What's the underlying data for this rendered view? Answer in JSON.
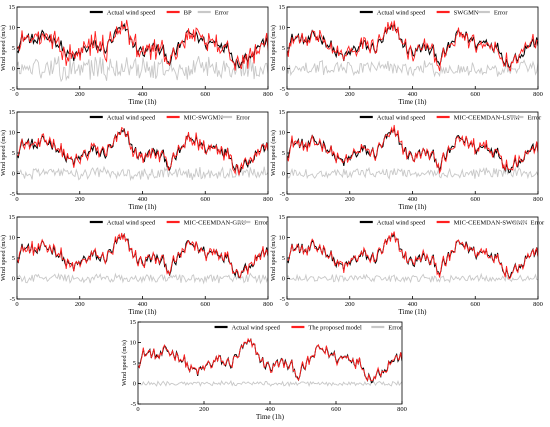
{
  "chart_data": [
    {
      "type": "line",
      "xlabel": "Time (1h)",
      "ylabel": "Wind speed (m/s)",
      "xlim": [
        0,
        800
      ],
      "ylim": [
        -5,
        15
      ],
      "x_ticks": [
        0,
        200,
        400,
        600,
        800
      ],
      "y_ticks": [
        -5,
        0,
        5,
        10,
        15
      ],
      "legend_position": "top-center",
      "series": [
        {
          "name": "Actual wind speed",
          "color": "#000000"
        },
        {
          "name": "BP",
          "color": "#ff2020"
        },
        {
          "name": "Error",
          "color": "#c8c8c8"
        }
      ]
    },
    {
      "type": "line",
      "xlabel": "Time (1h)",
      "ylabel": "Wind speed (m/s)",
      "xlim": [
        0,
        800
      ],
      "ylim": [
        -5,
        15
      ],
      "x_ticks": [
        0,
        200,
        400,
        600,
        800
      ],
      "y_ticks": [
        -5,
        0,
        5,
        10,
        15
      ],
      "legend_position": "top-center",
      "series": [
        {
          "name": "Actual wind speed",
          "color": "#000000"
        },
        {
          "name": "SWGMN",
          "color": "#ff2020"
        },
        {
          "name": "Error",
          "color": "#c8c8c8"
        }
      ]
    },
    {
      "type": "line",
      "xlabel": "Time (1h)",
      "ylabel": "Wind speed (m/s)",
      "xlim": [
        0,
        800
      ],
      "ylim": [
        -5,
        15
      ],
      "x_ticks": [
        0,
        200,
        400,
        600,
        800
      ],
      "y_ticks": [
        -5,
        0,
        5,
        10,
        15
      ],
      "legend_position": "top-center",
      "series": [
        {
          "name": "Actual wind speed",
          "color": "#000000"
        },
        {
          "name": "MIC-SWGMN",
          "color": "#ff2020"
        },
        {
          "name": "Error",
          "color": "#c8c8c8"
        }
      ]
    },
    {
      "type": "line",
      "xlabel": "Time (1h)",
      "ylabel": "Wind speed (m/s)",
      "xlim": [
        0,
        800
      ],
      "ylim": [
        -5,
        15
      ],
      "x_ticks": [
        0,
        200,
        400,
        600,
        800
      ],
      "y_ticks": [
        -5,
        0,
        5,
        10,
        15
      ],
      "legend_position": "top-center",
      "series": [
        {
          "name": "Actual wind speed",
          "color": "#000000"
        },
        {
          "name": "MIC-CEEMDAN-LSTM",
          "color": "#ff2020"
        },
        {
          "name": "Error",
          "color": "#c8c8c8"
        }
      ]
    },
    {
      "type": "line",
      "xlabel": "Time (1h)",
      "ylabel": "Wind speed (m/s)",
      "xlim": [
        0,
        800
      ],
      "ylim": [
        -5,
        15
      ],
      "x_ticks": [
        0,
        200,
        400,
        600,
        800
      ],
      "y_ticks": [
        -5,
        0,
        5,
        10,
        15
      ],
      "legend_position": "top-center",
      "series": [
        {
          "name": "Actual wind speed",
          "color": "#000000"
        },
        {
          "name": "MIC-CEEMDAN-GRU",
          "color": "#ff2020"
        },
        {
          "name": "Error",
          "color": "#c8c8c8"
        }
      ]
    },
    {
      "type": "line",
      "xlabel": "Time (1h)",
      "ylabel": "Wind speed (m/s)",
      "xlim": [
        0,
        800
      ],
      "ylim": [
        -5,
        15
      ],
      "x_ticks": [
        0,
        200,
        400,
        600,
        800
      ],
      "y_ticks": [
        -5,
        0,
        5,
        10,
        15
      ],
      "legend_position": "top-center",
      "series": [
        {
          "name": "Actual wind speed",
          "color": "#000000"
        },
        {
          "name": "MIC-CEEMDAN-SWGMN",
          "color": "#ff2020"
        },
        {
          "name": "Error",
          "color": "#c8c8c8"
        }
      ]
    },
    {
      "type": "line",
      "xlabel": "Time (1h)",
      "ylabel": "Wind speed (m/s)",
      "xlim": [
        0,
        800
      ],
      "ylim": [
        -5,
        15
      ],
      "x_ticks": [
        0,
        200,
        400,
        600,
        800
      ],
      "y_ticks": [
        -5,
        0,
        5,
        10,
        15
      ],
      "legend_position": "top-center",
      "series": [
        {
          "name": "Actual wind speed",
          "color": "#000000"
        },
        {
          "name": "The proposed model",
          "color": "#ff2020"
        },
        {
          "name": "Error",
          "color": "#c8c8c8"
        }
      ]
    }
  ]
}
